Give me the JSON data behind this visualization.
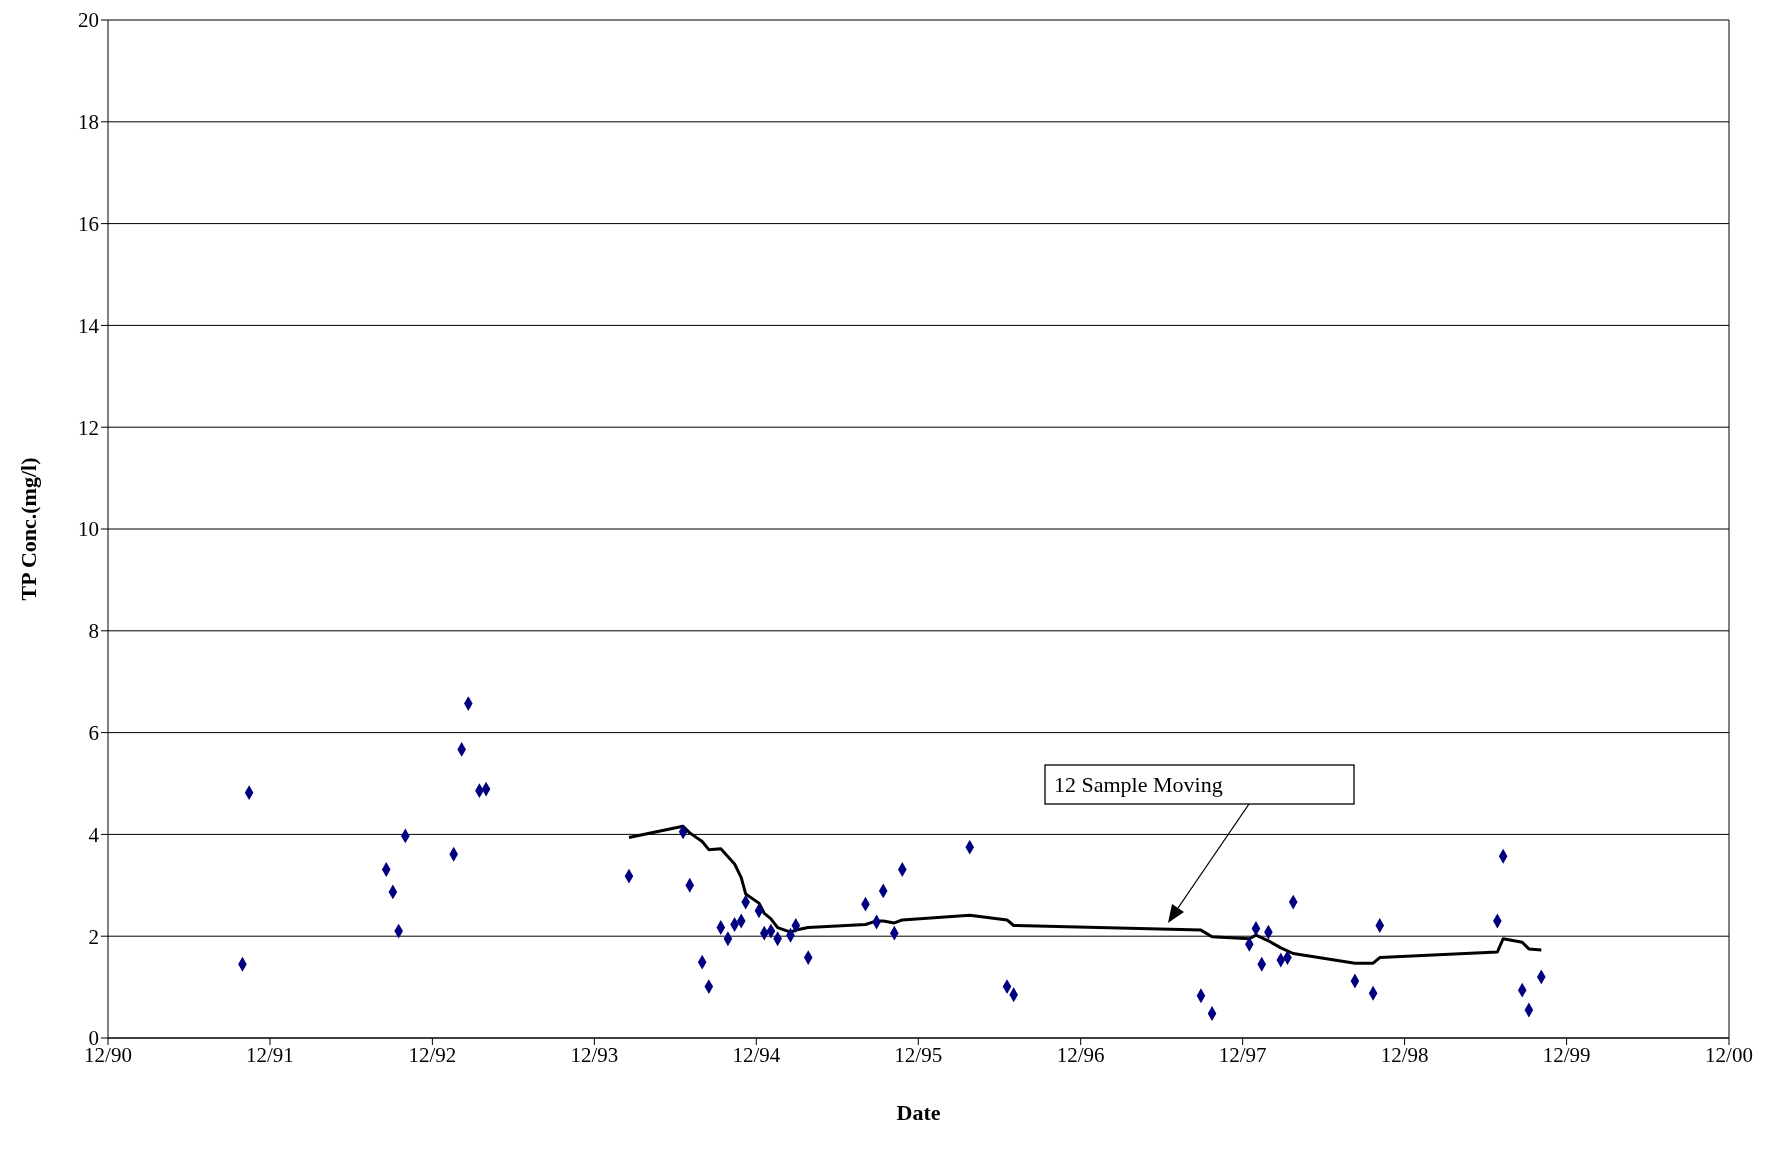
{
  "chart_data": {
    "type": "scatter",
    "xlabel": "Date",
    "ylabel": "TP Conc.(mg/l)",
    "grid": "y",
    "marker": "diamond",
    "xlim": [
      "1990-12-01",
      "2000-12-01"
    ],
    "xticks": [
      {
        "value": "1990-12-01",
        "label": "12/90"
      },
      {
        "value": "1991-12-01",
        "label": "12/91"
      },
      {
        "value": "1992-12-01",
        "label": "12/92"
      },
      {
        "value": "1993-12-01",
        "label": "12/93"
      },
      {
        "value": "1994-12-01",
        "label": "12/94"
      },
      {
        "value": "1995-12-01",
        "label": "12/95"
      },
      {
        "value": "1996-12-01",
        "label": "12/96"
      },
      {
        "value": "1997-12-01",
        "label": "12/97"
      },
      {
        "value": "1998-12-01",
        "label": "12/98"
      },
      {
        "value": "1999-12-01",
        "label": "12/99"
      },
      {
        "value": "2000-12-01",
        "label": "12/00"
      }
    ],
    "ylim": [
      0,
      20
    ],
    "yticks": [
      0,
      2,
      4,
      6,
      8,
      10,
      12,
      14,
      16,
      18,
      20
    ],
    "annotations": [
      "12 Sample Moving"
    ],
    "series": [
      {
        "color": "#000080",
        "x": [
          "1991-09-30",
          "1991-10-15",
          "1992-08-19",
          "1992-09-03",
          "1992-09-16",
          "1992-10-01",
          "1993-01-18",
          "1993-02-05",
          "1993-02-20",
          "1993-03-17",
          "1993-04-01",
          "1994-02-17",
          "1994-06-19",
          "1994-07-04",
          "1994-08-01",
          "1994-08-16",
          "1994-09-12",
          "1994-09-28",
          "1994-10-13",
          "1994-10-28",
          "1994-11-07",
          "1994-12-07",
          "1994-12-19",
          "1995-01-03",
          "1995-01-18",
          "1995-02-16",
          "1995-02-28",
          "1995-03-28",
          "1995-08-04",
          "1995-08-29",
          "1995-09-13",
          "1995-10-08",
          "1995-10-26",
          "1996-03-26",
          "1996-06-18",
          "1996-07-03",
          "1997-08-29",
          "1997-09-23",
          "1997-12-16",
          "1997-12-31",
          "1998-01-13",
          "1998-01-28",
          "1998-02-25",
          "1998-03-12",
          "1998-03-25",
          "1998-08-11",
          "1998-09-21",
          "1998-10-06",
          "1999-06-28",
          "1999-07-11",
          "1999-08-23",
          "1999-09-07",
          "1999-10-05"
        ],
        "values": [
          1.45,
          4.82,
          3.31,
          2.87,
          2.1,
          3.97,
          3.61,
          5.67,
          6.57,
          4.86,
          4.89,
          3.18,
          4.05,
          3.0,
          1.49,
          1.01,
          2.17,
          1.95,
          2.23,
          2.3,
          2.67,
          2.5,
          2.06,
          2.1,
          1.95,
          2.02,
          2.21,
          1.58,
          2.63,
          2.28,
          2.89,
          2.06,
          3.31,
          3.75,
          1.01,
          0.85,
          0.83,
          0.48,
          1.84,
          2.15,
          1.45,
          2.08,
          1.53,
          1.58,
          2.67,
          1.12,
          0.88,
          2.21,
          2.3,
          3.57,
          0.94,
          0.55,
          1.2
        ]
      },
      {
        "type": "line",
        "color": "#000000",
        "marker": "none",
        "line_style": "solid",
        "x": [
          "1994-02-17",
          "1994-06-19",
          "1994-07-04",
          "1994-08-01",
          "1994-08-16",
          "1994-09-12",
          "1994-10-13",
          "1994-10-28",
          "1994-11-07",
          "1994-12-07",
          "1994-12-19",
          "1995-01-03",
          "1995-01-18",
          "1995-02-16",
          "1995-02-28",
          "1995-03-28",
          "1995-08-04",
          "1995-08-29",
          "1995-09-13",
          "1995-10-08",
          "1995-10-26",
          "1996-03-26",
          "1996-06-18",
          "1996-07-03",
          "1997-08-29",
          "1997-09-23",
          "1997-12-16",
          "1997-12-31",
          "1998-01-28",
          "1998-02-25",
          "1998-03-25",
          "1998-08-11",
          "1998-09-21",
          "1998-10-06",
          "1999-06-28",
          "1999-07-11",
          "1999-08-23",
          "1999-09-07",
          "1999-10-05"
        ],
        "values": [
          3.94,
          4.16,
          4.03,
          3.86,
          3.7,
          3.72,
          3.42,
          3.15,
          2.83,
          2.65,
          2.45,
          2.34,
          2.17,
          2.08,
          2.12,
          2.17,
          2.23,
          2.3,
          2.3,
          2.26,
          2.32,
          2.41,
          2.32,
          2.21,
          2.12,
          1.99,
          1.95,
          2.02,
          1.91,
          1.77,
          1.66,
          1.47,
          1.47,
          1.58,
          1.69,
          1.95,
          1.88,
          1.75,
          1.73
        ]
      }
    ]
  }
}
